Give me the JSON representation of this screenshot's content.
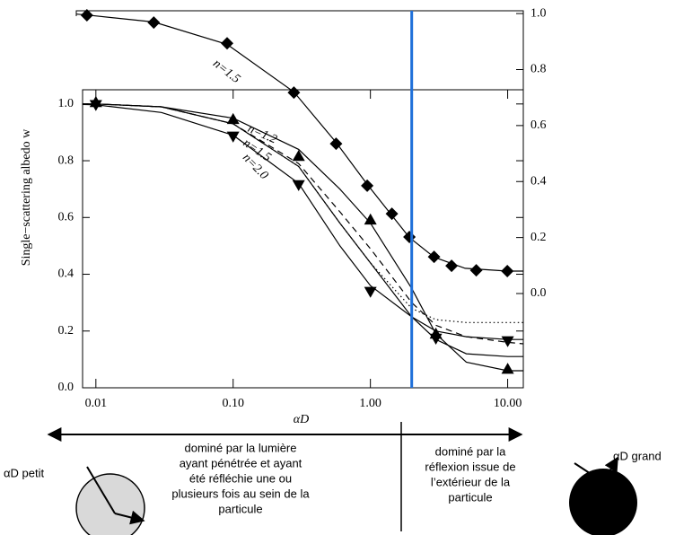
{
  "chart_data": [
    {
      "type": "line",
      "xscale": "log",
      "xlim": [
        0.0084,
        13
      ],
      "ylim": [
        0,
        1.01
      ],
      "y_axis_side": "right",
      "yticks": [
        {
          "value": 0,
          "label": "0.0"
        },
        0.2,
        0.4,
        0.6,
        0.8,
        {
          "value": 1,
          "label": "1.0"
        }
      ],
      "series": [
        {
          "name": "n=1.5",
          "style": "solid",
          "color": "#000000",
          "x": [
            0.0084,
            0.01,
            0.03,
            0.1,
            0.3,
            0.6,
            1,
            2,
            3,
            5,
            10,
            13
          ],
          "values": [
            0.998,
            0.995,
            0.97,
            0.89,
            0.72,
            0.54,
            0.39,
            0.2,
            0.13,
            0.09,
            0.08,
            0.08
          ]
        },
        {
          "style": "none",
          "marker": "diamond",
          "color": "#000000",
          "x": [
            0.01,
            0.03,
            0.1,
            0.3,
            0.6,
            1,
            1.5,
            2,
            3,
            4,
            6,
            10
          ],
          "values": [
            0.994,
            0.968,
            0.894,
            0.718,
            0.535,
            0.385,
            0.285,
            0.202,
            0.131,
            0.099,
            0.083,
            0.08
          ]
        }
      ]
    },
    {
      "type": "line",
      "xscale": "log",
      "xlim": [
        0.008,
        13
      ],
      "ylim": [
        0,
        1.05
      ],
      "x_label": "αD",
      "y_label": "Single−scattering albedo w",
      "xticks": [
        0.01,
        {
          "value": 0.1,
          "label": "0.10"
        },
        {
          "value": 1,
          "label": "1.00"
        },
        {
          "value": 10,
          "label": "10.00"
        }
      ],
      "yticks": [
        {
          "value": 0,
          "label": "0.0"
        },
        0.2,
        0.4,
        0.6,
        0.8,
        {
          "value": 1,
          "label": "1.0"
        }
      ],
      "vline": {
        "x": 2,
        "color": "#1e6fd9"
      },
      "series": [
        {
          "name": "n=1.2",
          "style": "solid",
          "color": "#000000",
          "x": [
            0.008,
            0.01,
            0.03,
            0.1,
            0.3,
            0.6,
            1,
            2,
            3,
            5,
            10,
            13
          ],
          "values": [
            1.0,
            1.0,
            0.99,
            0.95,
            0.84,
            0.7,
            0.58,
            0.35,
            0.19,
            0.09,
            0.06,
            0.06
          ]
        },
        {
          "name": "n=1.5",
          "style": "dashed",
          "color": "#000000",
          "x": [
            0.008,
            0.01,
            0.03,
            0.1,
            0.3,
            0.6,
            1,
            2,
            3,
            5,
            10,
            13
          ],
          "values": [
            1.0,
            1.0,
            0.99,
            0.93,
            0.79,
            0.62,
            0.49,
            0.3,
            0.22,
            0.18,
            0.16,
            0.155
          ]
        },
        {
          "name": "n=2.0",
          "style": "solid",
          "color": "#000000",
          "x": [
            0.008,
            0.01,
            0.03,
            0.1,
            0.3,
            0.6,
            1,
            2,
            3,
            5,
            10,
            13
          ],
          "values": [
            0.998,
            0.997,
            0.97,
            0.89,
            0.72,
            0.5,
            0.36,
            0.25,
            0.2,
            0.18,
            0.17,
            0.17
          ]
        },
        {
          "style": "dotted",
          "color": "#000000",
          "x": [
            0.008,
            0.01,
            0.03,
            0.1,
            0.3,
            0.6,
            1,
            2,
            3,
            5,
            10,
            13
          ],
          "values": [
            1.0,
            1.0,
            0.99,
            0.93,
            0.78,
            0.58,
            0.44,
            0.28,
            0.24,
            0.23,
            0.23,
            0.23
          ]
        },
        {
          "style": "solid",
          "color": "#000000",
          "x": [
            0.008,
            0.01,
            0.03,
            0.1,
            0.3,
            0.6,
            1,
            2,
            3,
            5,
            10,
            13
          ],
          "values": [
            1.0,
            1.0,
            0.99,
            0.93,
            0.78,
            0.58,
            0.44,
            0.25,
            0.17,
            0.12,
            0.11,
            0.11
          ]
        },
        {
          "style": "none",
          "marker": "triangle-up",
          "color": "#000000",
          "x": [
            0.01,
            0.1,
            0.3,
            1,
            3,
            10
          ],
          "values": [
            1.006,
            0.946,
            0.816,
            0.592,
            0.19,
            0.066
          ]
        },
        {
          "style": "none",
          "marker": "triangle-down",
          "color": "#000000",
          "x": [
            0.01,
            0.1,
            0.3,
            1,
            3,
            10
          ],
          "values": [
            0.997,
            0.886,
            0.715,
            0.339,
            0.174,
            0.165
          ]
        }
      ]
    }
  ],
  "annotations": {
    "left_label": "αD petit",
    "right_label": "αD grand",
    "middle_text": [
      "dominé par la lumière",
      "ayant pénétrée et ayant",
      "été réfléchie une ou",
      "plusieurs fois au sein de la",
      "particule"
    ],
    "right_text": [
      "dominé par la",
      "réflexion issue de",
      "l’extérieur de la",
      "particule"
    ]
  }
}
